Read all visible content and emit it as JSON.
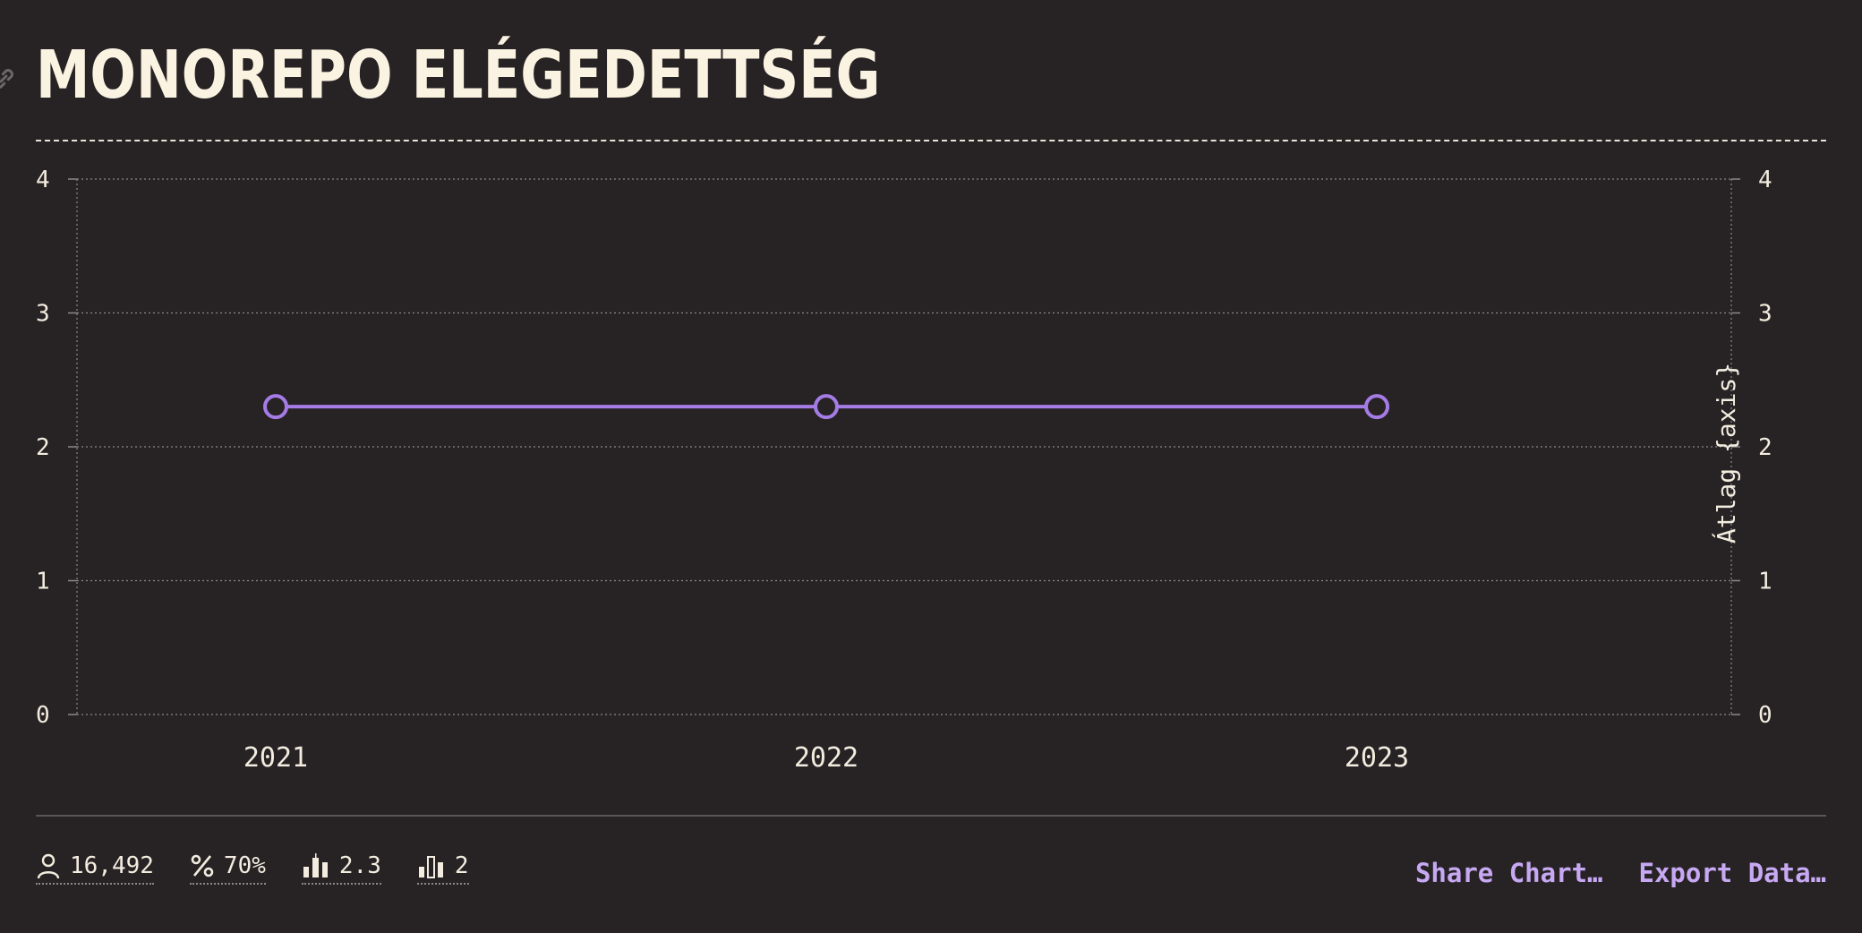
{
  "header": {
    "title": "MONOREPO ELÉGEDETTSÉG"
  },
  "chart_data": {
    "type": "line",
    "title": "MONOREPO ELÉGEDETTSÉG",
    "categories": [
      "2021",
      "2022",
      "2023"
    ],
    "series": [
      {
        "values": [
          2.3,
          2.3,
          2.3
        ]
      }
    ],
    "ylim": [
      0,
      4
    ],
    "yticks": [
      0,
      1,
      2,
      3,
      4
    ],
    "y2ticks": [
      0,
      1,
      2,
      3,
      4
    ],
    "y2label": "Átlag {axis}",
    "grid": true,
    "line_color": "#a57ce6",
    "marker": "hollow-circle"
  },
  "footer": {
    "stats": [
      {
        "icon": "person-icon",
        "value": "16,492"
      },
      {
        "icon": "percent-icon",
        "value": "70%"
      },
      {
        "icon": "bar-chart-median-icon",
        "value": "2.3"
      },
      {
        "icon": "bar-chart-icon",
        "value": "2"
      }
    ],
    "actions": {
      "share_label": "Share Chart…",
      "export_label": "Export Data…"
    }
  },
  "colors": {
    "background": "#272325",
    "text": "#f3ecdf",
    "accent": "#c7a8f3"
  }
}
